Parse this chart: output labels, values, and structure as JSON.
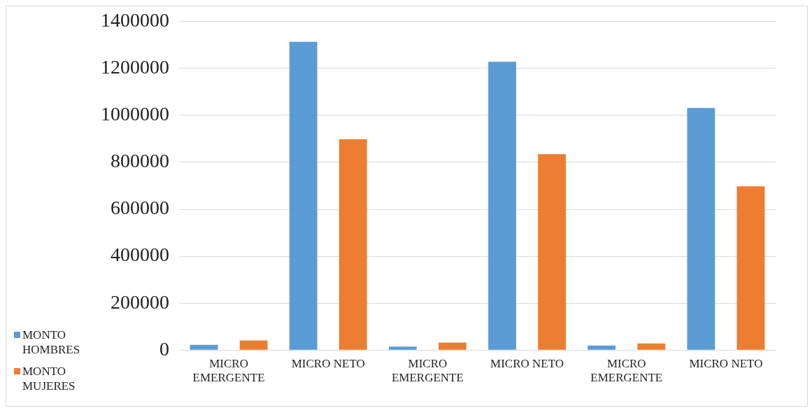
{
  "chart_data": {
    "type": "bar",
    "categories": [
      "MICRO EMERGENTE",
      "MICRO NETO",
      "MICRO EMERGENTE",
      "MICRO NETO",
      "MICRO EMERGENTE",
      "MICRO NETO"
    ],
    "series": [
      {
        "name": "MONTO HOMBRES",
        "color": "#5b9bd5",
        "values": [
          22000,
          1314000,
          15000,
          1229000,
          19000,
          1032000
        ]
      },
      {
        "name": "MONTO MUJERES",
        "color": "#ed7d31",
        "values": [
          41000,
          898000,
          32000,
          835000,
          28000,
          698000
        ]
      }
    ],
    "ylim": [
      0,
      1400000
    ],
    "yticks": [
      0,
      200000,
      400000,
      600000,
      800000,
      1000000,
      1200000,
      1400000
    ],
    "grid": "y",
    "legend": "bottom left"
  }
}
